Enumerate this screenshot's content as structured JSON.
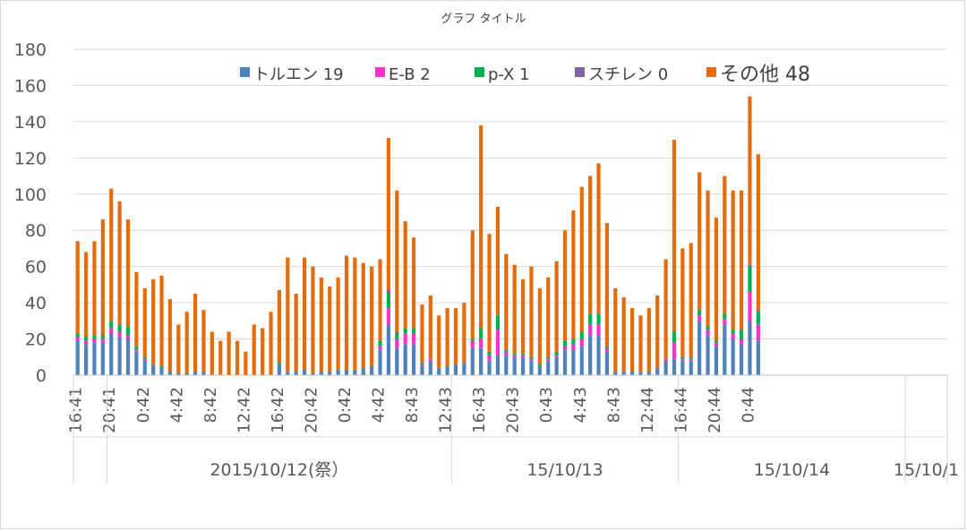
{
  "chart_data": {
    "type": "bar",
    "stacked": true,
    "title": "グラフ タイトル",
    "ylim": [
      0,
      180
    ],
    "yticks": [
      0,
      20,
      40,
      60,
      80,
      100,
      120,
      140,
      160,
      180
    ],
    "grid": true,
    "legend_position": "top",
    "x_time_labels": [
      "16:41",
      "20:41",
      "0:42",
      "4:42",
      "8:42",
      "12:42",
      "16:42",
      "20:42",
      "0:42",
      "4:42",
      "8:43",
      "12:43",
      "16:43",
      "20:43",
      "0:43",
      "4:43",
      "8:43",
      "12:44",
      "16:44",
      "20:44",
      "0:44"
    ],
    "x_date_groups": [
      {
        "label": "",
        "start": 0,
        "end": 4
      },
      {
        "label": "2015/10/12(祭）",
        "start": 4,
        "end": 45
      },
      {
        "label": "15/10/13",
        "start": 45,
        "end": 72
      },
      {
        "label": "15/10/14",
        "start": 72,
        "end": 99
      },
      {
        "label": "15/10/1",
        "start": 99,
        "end": 104
      }
    ],
    "series": [
      {
        "name": "トルエン 19",
        "color": "#4f81bd",
        "values": [
          19,
          17,
          18,
          18,
          23,
          21,
          20,
          13,
          8,
          6,
          4,
          2,
          1,
          1,
          2,
          2,
          0,
          0,
          0,
          0,
          0,
          0,
          0,
          0,
          6,
          2,
          2,
          3,
          1,
          2,
          2,
          3,
          3,
          3,
          4,
          5,
          14,
          28,
          15,
          17,
          17,
          5,
          8,
          4,
          5,
          6,
          7,
          15,
          15,
          8,
          11,
          11,
          10,
          10,
          8,
          5,
          8,
          10,
          14,
          14,
          16,
          22,
          22,
          13,
          2,
          2,
          2,
          2,
          2,
          4,
          8,
          9,
          8,
          8,
          30,
          22,
          16,
          28,
          20,
          17,
          30,
          19
        ]
      },
      {
        "name": "E-B 2",
        "color": "#ff33cc",
        "values": [
          2,
          2,
          2,
          2,
          3,
          3,
          2,
          1,
          1,
          0,
          0,
          0,
          0,
          0,
          0,
          0,
          0,
          0,
          0,
          0,
          0,
          0,
          0,
          0,
          0,
          0,
          0,
          0,
          0,
          0,
          0,
          0,
          0,
          0,
          0,
          0,
          2,
          9,
          5,
          6,
          6,
          1,
          1,
          0,
          0,
          0,
          0,
          4,
          5,
          3,
          14,
          2,
          1,
          1,
          1,
          0,
          1,
          1,
          2,
          3,
          4,
          6,
          6,
          2,
          0,
          0,
          0,
          0,
          0,
          0,
          1,
          9,
          1,
          1,
          3,
          3,
          2,
          3,
          3,
          3,
          16,
          9
        ]
      },
      {
        "name": "p-X 1",
        "color": "#00b050",
        "values": [
          2,
          2,
          2,
          2,
          4,
          4,
          5,
          2,
          1,
          0,
          1,
          0,
          0,
          0,
          0,
          0,
          0,
          0,
          0,
          0,
          0,
          0,
          0,
          0,
          1,
          0,
          0,
          0,
          0,
          0,
          0,
          0,
          0,
          0,
          0,
          0,
          3,
          8,
          3,
          3,
          3,
          1,
          0,
          0,
          0,
          0,
          0,
          1,
          6,
          2,
          8,
          1,
          1,
          1,
          1,
          1,
          1,
          2,
          3,
          3,
          4,
          6,
          6,
          1,
          0,
          0,
          0,
          0,
          0,
          0,
          0,
          6,
          1,
          1,
          3,
          2,
          1,
          3,
          2,
          5,
          14,
          7
        ]
      },
      {
        "name": "スチレン 0",
        "color": "#8064a2",
        "values": [
          0,
          0,
          0,
          0,
          0,
          0,
          0,
          0,
          0,
          0,
          0,
          0,
          0,
          0,
          0,
          0,
          0,
          0,
          0,
          0,
          0,
          0,
          0,
          0,
          0,
          0,
          0,
          0,
          0,
          0,
          0,
          0,
          0,
          0,
          0,
          0,
          0,
          2,
          1,
          0,
          0,
          0,
          0,
          0,
          0,
          0,
          0,
          0,
          0,
          0,
          0,
          0,
          0,
          0,
          0,
          0,
          0,
          0,
          0,
          0,
          0,
          0,
          0,
          0,
          0,
          0,
          0,
          0,
          0,
          0,
          0,
          0,
          0,
          0,
          0,
          0,
          0,
          0,
          0,
          0,
          1,
          1
        ]
      },
      {
        "name": "その他 48",
        "color": "#e46c0a",
        "values": [
          51,
          47,
          52,
          64,
          73,
          68,
          59,
          41,
          38,
          47,
          50,
          40,
          27,
          34,
          43,
          34,
          24,
          19,
          24,
          19,
          13,
          28,
          26,
          35,
          40,
          63,
          43,
          62,
          59,
          52,
          47,
          51,
          63,
          62,
          58,
          55,
          45,
          84,
          78,
          59,
          50,
          32,
          35,
          29,
          32,
          31,
          33,
          60,
          112,
          65,
          60,
          53,
          49,
          41,
          50,
          42,
          44,
          50,
          61,
          71,
          80,
          76,
          83,
          68,
          46,
          41,
          35,
          31,
          35,
          40,
          55,
          106,
          60,
          63,
          76,
          75,
          68,
          76,
          77,
          77,
          93,
          86
        ]
      }
    ]
  }
}
